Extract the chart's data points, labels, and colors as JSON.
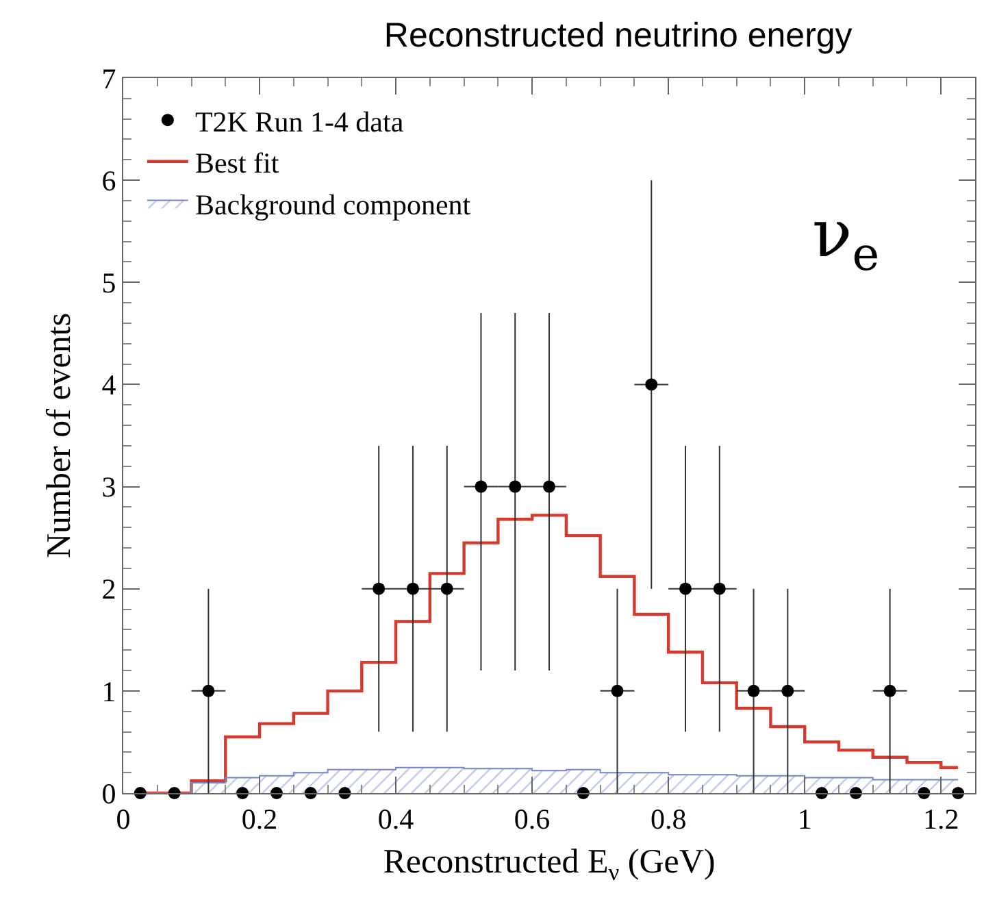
{
  "chart_data": {
    "type": "scatter",
    "title": "Reconstructed neutrino energy",
    "xlabel": "Reconstructed E$_{ν}$ (GeV)",
    "ylabel": "Number of events",
    "xlim": [
      0,
      1.25
    ],
    "xticks": [
      0,
      0.2,
      0.4,
      0.6,
      0.8,
      1,
      1.2
    ],
    "ylim": [
      0,
      7
    ],
    "yticks": [
      0,
      1,
      2,
      3,
      4,
      5,
      6,
      7
    ],
    "legend": "top left",
    "annotations": [
      "ν$_{e}$"
    ],
    "series": [
      {
        "name": "Best fit",
        "type": "step",
        "color": "#d43a2f",
        "x": [
          0.025,
          0.075,
          0.125,
          0.175,
          0.225,
          0.275,
          0.325,
          0.375,
          0.425,
          0.475,
          0.525,
          0.575,
          0.625,
          0.675,
          0.725,
          0.775,
          0.825,
          0.875,
          0.925,
          0.975,
          1.025,
          1.075,
          1.125,
          1.175,
          1.225
        ],
        "values": [
          0,
          0,
          0.12,
          0.55,
          0.68,
          0.78,
          1.0,
          1.28,
          1.68,
          2.15,
          2.45,
          2.68,
          2.72,
          2.52,
          2.12,
          1.75,
          1.38,
          1.08,
          0.83,
          0.65,
          0.5,
          0.42,
          0.35,
          0.3,
          0.25
        ]
      },
      {
        "name": "Background component",
        "type": "area",
        "color": "#6f86c8",
        "x": [
          0.025,
          0.075,
          0.125,
          0.175,
          0.225,
          0.275,
          0.325,
          0.375,
          0.425,
          0.475,
          0.525,
          0.575,
          0.625,
          0.675,
          0.725,
          0.775,
          0.825,
          0.875,
          0.925,
          0.975,
          1.025,
          1.075,
          1.125,
          1.175,
          1.225
        ],
        "values": [
          0,
          0,
          0.1,
          0.15,
          0.17,
          0.2,
          0.23,
          0.23,
          0.25,
          0.25,
          0.24,
          0.24,
          0.22,
          0.23,
          0.2,
          0.2,
          0.18,
          0.18,
          0.17,
          0.17,
          0.15,
          0.15,
          0.13,
          0.13,
          0.13
        ]
      },
      {
        "name": "T2K Run 1-4 data",
        "color": "#000000",
        "marker": "circle",
        "x": [
          0.025,
          0.075,
          0.125,
          0.175,
          0.225,
          0.275,
          0.325,
          0.375,
          0.425,
          0.475,
          0.525,
          0.575,
          0.625,
          0.675,
          0.725,
          0.775,
          0.825,
          0.875,
          0.925,
          0.975,
          1.025,
          1.075,
          1.125,
          1.175,
          1.225
        ],
        "values": [
          0,
          0,
          1,
          0,
          0,
          0,
          0,
          2,
          2,
          2,
          3,
          3,
          3,
          0,
          1,
          4,
          2,
          2,
          1,
          1,
          0,
          0,
          1,
          0,
          0
        ],
        "errors": [
          null,
          null,
          [
            0,
            2
          ],
          null,
          null,
          null,
          null,
          [
            0.6,
            3.4
          ],
          [
            0.6,
            3.4
          ],
          [
            0.6,
            3.4
          ],
          [
            1.2,
            4.7
          ],
          [
            1.2,
            4.7
          ],
          [
            1.2,
            4.7
          ],
          null,
          [
            0,
            2
          ],
          [
            2,
            6
          ],
          [
            0.6,
            3.4
          ],
          [
            0.6,
            3.4
          ],
          [
            0,
            2
          ],
          [
            0,
            2
          ],
          null,
          null,
          [
            0,
            2
          ],
          null,
          null
        ],
        "xerrors": [
          null,
          null,
          0.025,
          null,
          null,
          null,
          null,
          0.025,
          0.025,
          0.025,
          0.025,
          0.025,
          0.025,
          null,
          0.025,
          0.025,
          0.025,
          0.025,
          0.025,
          0.025,
          null,
          null,
          0.025,
          null,
          null
        ]
      }
    ]
  }
}
